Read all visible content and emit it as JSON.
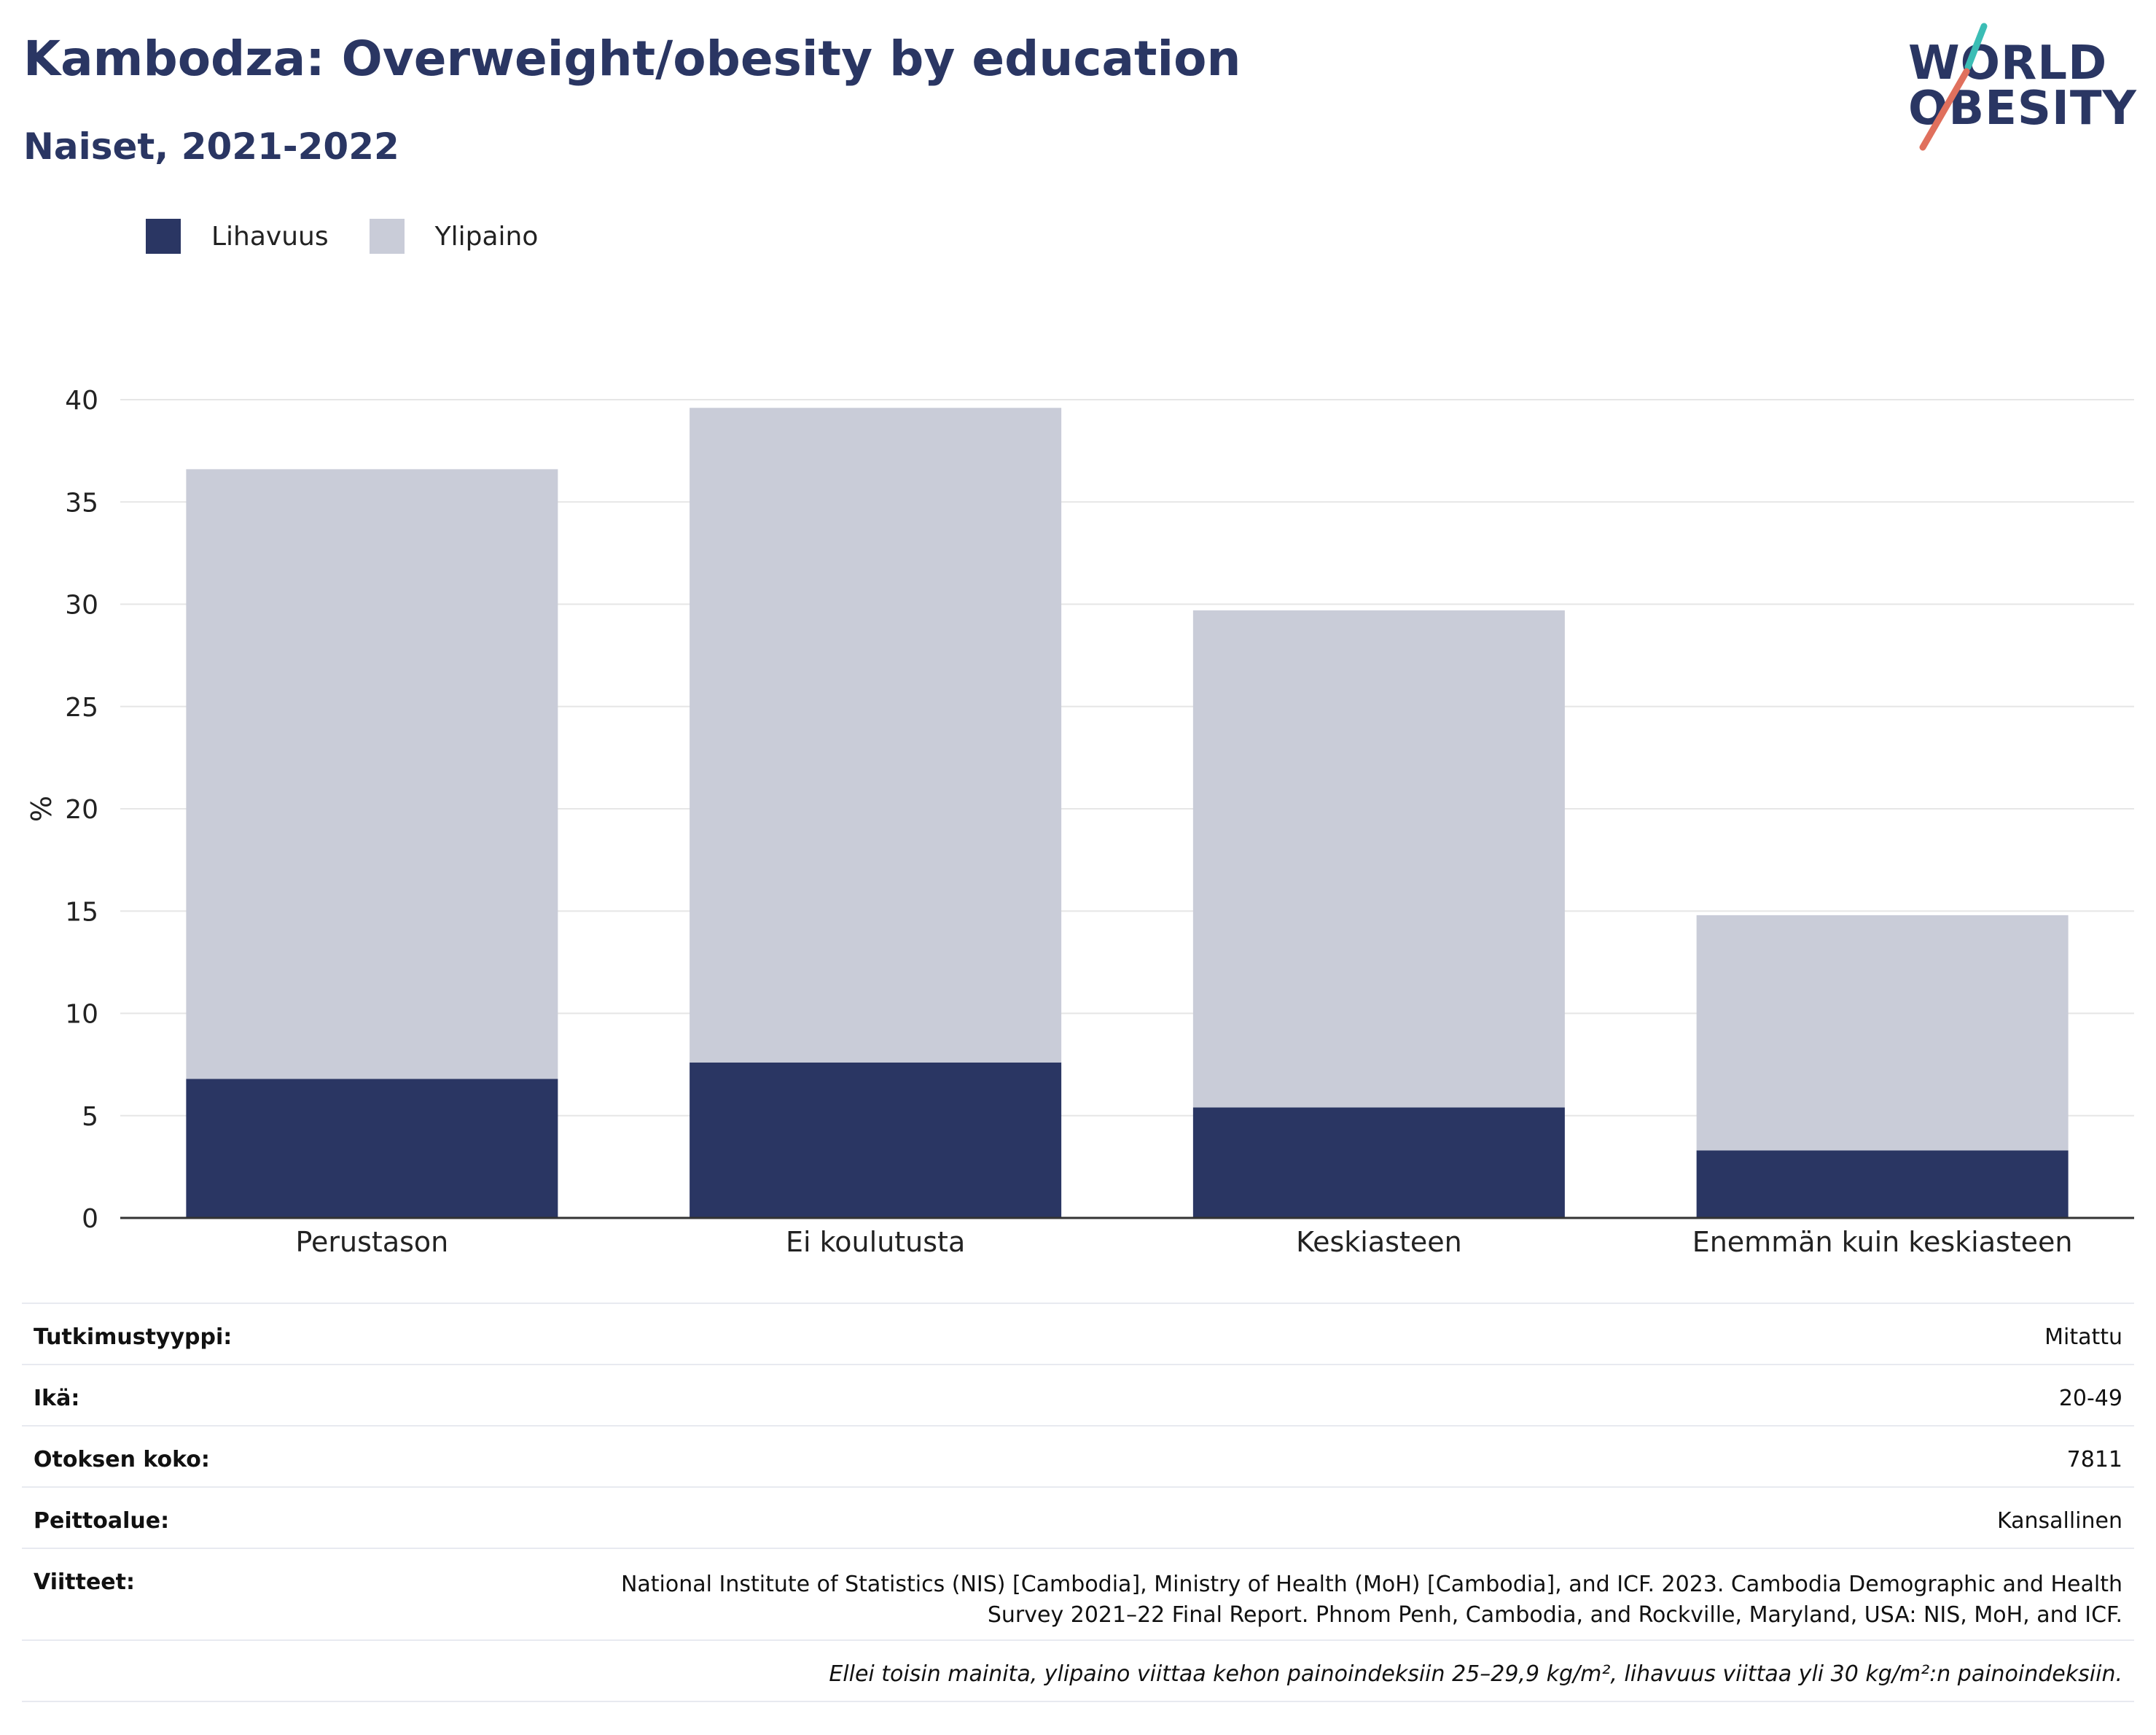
{
  "header": {
    "title": "Kambodza: Overweight/obesity by education",
    "subtitle": "Naiset, 2021-2022"
  },
  "logo": {
    "line1": "WORLD",
    "line2": "OBESITY",
    "accent_teal": "#3bbdb5",
    "accent_coral": "#e0705d"
  },
  "colors": {
    "obesity": "#2a3663",
    "overweight": "#c9ccd8",
    "grid": "#e6e6e6",
    "axis": "#333333"
  },
  "chart_data": {
    "type": "bar",
    "stacked": true,
    "categories": [
      "Perustason",
      "Ei koulutusta",
      "Keskiasteen",
      "Enemmän kuin keskiasteen"
    ],
    "series": [
      {
        "name": "Lihavuus",
        "values": [
          6.8,
          7.6,
          5.4,
          3.3
        ]
      },
      {
        "name": "Ylipaino",
        "values": [
          29.8,
          32.0,
          24.3,
          11.5
        ]
      }
    ],
    "totals": [
      36.6,
      39.6,
      29.7,
      14.8
    ],
    "ylabel": "%",
    "ylim": [
      0,
      40
    ],
    "yticks": [
      0,
      5,
      10,
      15,
      20,
      25,
      30,
      35,
      40
    ],
    "grid": true,
    "legend": "top-left"
  },
  "info": [
    {
      "label": "Tutkimustyyppi:",
      "value": "Mitattu"
    },
    {
      "label": "Ikä:",
      "value": "20-49"
    },
    {
      "label": "Otoksen koko:",
      "value": "7811"
    },
    {
      "label": "Peittoalue:",
      "value": "Kansallinen"
    },
    {
      "label": "Viitteet:",
      "value": "National Institute of Statistics (NIS) [Cambodia], Ministry of Health (MoH) [Cambodia], and ICF. 2023. Cambodia Demographic and Health Survey 2021–22 Final Report. Phnom Penh, Cambodia, and Rockville, Maryland, USA: NIS, MoH, and ICF."
    }
  ],
  "footnote": "Ellei toisin mainita, ylipaino viittaa kehon painoindeksiin 25–29,9 kg/m², lihavuus viittaa yli 30 kg/m²:n painoindeksiin."
}
